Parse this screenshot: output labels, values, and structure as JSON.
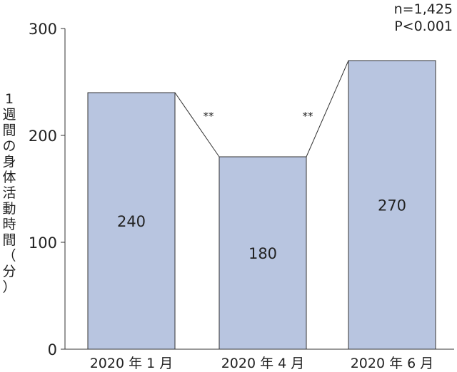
{
  "chart_data": {
    "type": "bar",
    "categories": [
      "2020 年 1 月",
      "2020 年 4 月",
      "2020 年 6 月"
    ],
    "values": [
      240,
      180,
      270
    ],
    "data_labels": [
      "240",
      "180",
      "270"
    ],
    "ylabel": "1週間の身体活動時間（分）",
    "ylim": [
      0,
      300
    ],
    "yticks": [
      0,
      100,
      200,
      300
    ],
    "annotations": [
      "n=1,425",
      "P<0.001"
    ],
    "significance_marks": [
      "**",
      "**"
    ],
    "grid": false,
    "bar_color": "#b8c5e0"
  }
}
